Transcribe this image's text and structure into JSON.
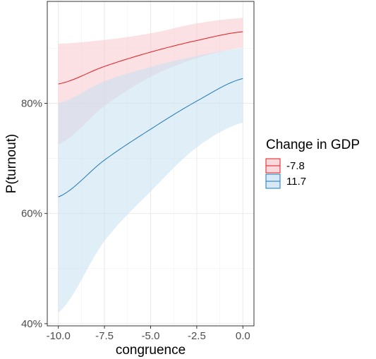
{
  "chart_data": {
    "type": "line",
    "xlabel": "congruence",
    "ylabel": "P(turnout)",
    "xlim": [
      -10.6,
      0.6
    ],
    "ylim": [
      0.396,
      0.985
    ],
    "x_ticks": [
      -10,
      -7.5,
      -5,
      -2.5,
      0
    ],
    "x_tick_labels": [
      "-10.0",
      "-7.5",
      "-5.0",
      "-2.5",
      "0.0"
    ],
    "y_ticks": [
      0.4,
      0.6,
      0.8
    ],
    "y_tick_labels": [
      "40%",
      "60%",
      "80%"
    ],
    "grid": true,
    "legend": {
      "title": "Change in GDP",
      "placement": "right"
    },
    "series": [
      {
        "name": "-7.8",
        "color": "#e41a1c",
        "fill": "#f8c8cc",
        "x": [
          -10,
          -7.5,
          -5,
          -2.5,
          0
        ],
        "y": [
          0.835,
          0.867,
          0.893,
          0.914,
          0.93
        ],
        "lower": [
          0.725,
          0.795,
          0.848,
          0.882,
          0.901
        ],
        "upper": [
          0.908,
          0.915,
          0.927,
          0.945,
          0.955
        ]
      },
      {
        "name": "11.7",
        "color": "#1f78b4",
        "fill": "#c6e0f2",
        "x": [
          -10,
          -7.5,
          -5,
          -2.5,
          0
        ],
        "y": [
          0.63,
          0.697,
          0.753,
          0.804,
          0.845
        ],
        "lower": [
          0.42,
          0.55,
          0.64,
          0.72,
          0.765
        ],
        "upper": [
          0.8,
          0.84,
          0.866,
          0.886,
          0.9
        ]
      }
    ]
  }
}
